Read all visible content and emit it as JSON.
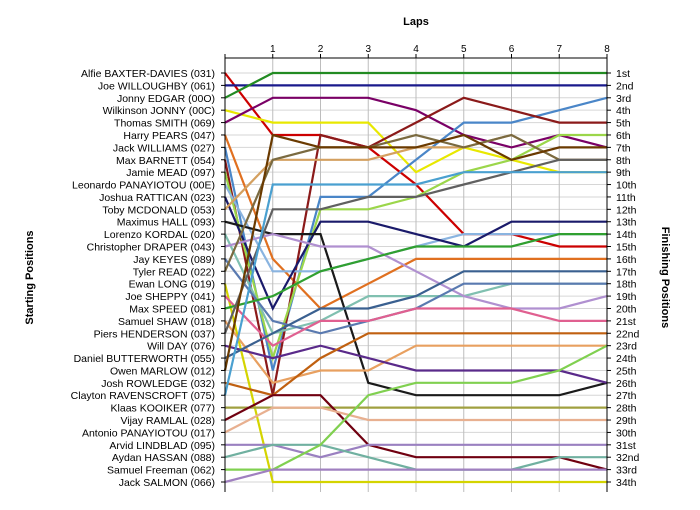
{
  "chart_data": {
    "type": "line",
    "xlabel": "Laps",
    "ylabel_left": "Starting Positions",
    "ylabel_right": "Finishing Positions",
    "x": [
      0,
      1,
      2,
      3,
      4,
      5,
      6,
      7,
      8
    ],
    "xlim": [
      0,
      8
    ],
    "ylim": [
      1,
      34
    ],
    "y_inverted": true,
    "grid": true,
    "starting_labels": [
      "Alfie BAXTER-DAVIES (031)",
      "Joe WILLOUGHBY (061)",
      "Jonny EDGAR (00O)",
      "Wilkinson JONNY (00C)",
      "Thomas SMITH (069)",
      "Harry PEARS (047)",
      "Jack WILLIAMS (027)",
      "Max BARNETT (054)",
      "Jamie MEAD (097)",
      "Leonardo PANAYIOTOU (00E)",
      "Joshua RATTICAN (023)",
      "Toby MCDONALD (053)",
      "Maximus HALL (093)",
      "Lorenzo KORDAL (020)",
      "Christopher DRAPER (043)",
      "Jay KEYES (089)",
      "Tyler READ (022)",
      "Ewan LONG (019)",
      "Joe SHEPPY (041)",
      "Max SPEED (081)",
      "Samuel SHAW (018)",
      "Piers HENDERSON (037)",
      "Will DAY (076)",
      "Daniel BUTTERWORTH (055)",
      "Owen MARLOW (012)",
      "Josh ROWLEDGE (032)",
      "Clayton RAVENSCROFT (075)",
      "Klaas KOOIKER (077)",
      "Vijay RAMLAL (028)",
      "Antonio PANAYIOTOU (017)",
      "Arvid LINDBLAD (095)",
      "Aydan HASSAN (088)",
      "Samuel Freeman (062)",
      "Jack SALMON (066)"
    ],
    "finishing_labels": [
      "1st",
      "2nd",
      "3rd",
      "4th",
      "5th",
      "6th",
      "7th",
      "8th",
      "9th",
      "10th",
      "11th",
      "12th",
      "13th",
      "14th",
      "15th",
      "16th",
      "17th",
      "18th",
      "19th",
      "20th",
      "21st",
      "22nd",
      "23rd",
      "24th",
      "25th",
      "26th",
      "27th",
      "28th",
      "29th",
      "30th",
      "31st",
      "32nd",
      "33rd",
      "34th"
    ],
    "series": [
      {
        "color": "#cc0000",
        "values": [
          1,
          6,
          6,
          7,
          10,
          14,
          14,
          15,
          15
        ]
      },
      {
        "color": "#1a1a8c",
        "values": [
          2,
          2,
          2,
          2,
          2,
          2,
          2,
          2,
          2
        ]
      },
      {
        "color": "#228b22",
        "values": [
          3,
          1,
          1,
          1,
          1,
          1,
          1,
          1,
          1
        ]
      },
      {
        "color": "#e8e800",
        "values": [
          4,
          5,
          5,
          5,
          9,
          7,
          8,
          9,
          9
        ]
      },
      {
        "color": "#7a0066",
        "values": [
          5,
          3,
          3,
          3,
          4,
          6,
          7,
          6,
          7
        ]
      },
      {
        "color": "#e07020",
        "values": [
          6,
          16,
          20,
          18,
          16,
          16,
          16,
          16,
          16
        ]
      },
      {
        "color": "#4a86c8",
        "values": [
          7,
          25,
          11,
          11,
          8,
          5,
          5,
          4,
          3
        ]
      },
      {
        "color": "#8b1a1a",
        "values": [
          8,
          27,
          6,
          7,
          5,
          3,
          4,
          5,
          5
        ]
      },
      {
        "color": "#9bd64a",
        "values": [
          9,
          24,
          12,
          12,
          11,
          9,
          8,
          6,
          6
        ]
      },
      {
        "color": "#8ab4e0",
        "values": [
          10,
          17,
          17,
          16,
          15,
          14,
          14,
          14,
          14
        ]
      },
      {
        "color": "#1a1a6a",
        "values": [
          11,
          20,
          13,
          13,
          14,
          15,
          13,
          13,
          13
        ]
      },
      {
        "color": "#d4a060",
        "values": [
          12,
          8,
          8,
          8,
          7,
          7,
          6,
          8,
          8
        ]
      },
      {
        "color": "#1a1a1a",
        "values": [
          13,
          14,
          14,
          26,
          27,
          27,
          27,
          27,
          26
        ]
      },
      {
        "color": "#80c0b0",
        "values": [
          14,
          22,
          21,
          19,
          19,
          19,
          18,
          18,
          18
        ]
      },
      {
        "color": "#b090d0",
        "values": [
          15,
          14,
          15,
          15,
          17,
          19,
          20,
          20,
          19
        ]
      },
      {
        "color": "#5a7ab0",
        "values": [
          16,
          21,
          22,
          21,
          20,
          18,
          18,
          18,
          18
        ]
      },
      {
        "color": "#7a6a40",
        "values": [
          17,
          8,
          7,
          7,
          6,
          7,
          6,
          8,
          8
        ]
      },
      {
        "color": "#d4d400",
        "values": [
          18,
          34,
          34,
          34,
          34,
          34,
          34,
          34,
          34
        ]
      },
      {
        "color": "#e06090",
        "values": [
          19,
          23,
          21,
          21,
          20,
          20,
          20,
          21,
          21
        ]
      },
      {
        "color": "#30a030",
        "values": [
          20,
          19,
          17,
          16,
          15,
          15,
          15,
          14,
          14
        ]
      },
      {
        "color": "#e8a060",
        "values": [
          21,
          26,
          25,
          25,
          23,
          23,
          23,
          23,
          23
        ]
      },
      {
        "color": "#606060",
        "values": [
          22,
          12,
          12,
          11,
          11,
          10,
          9,
          8,
          8
        ]
      },
      {
        "color": "#5a2a8a",
        "values": [
          23,
          24,
          23,
          24,
          25,
          25,
          25,
          25,
          26
        ]
      },
      {
        "color": "#3a6090",
        "values": [
          24,
          22,
          20,
          20,
          19,
          17,
          17,
          17,
          17
        ]
      },
      {
        "color": "#6a3a00",
        "values": [
          25,
          6,
          7,
          7,
          7,
          6,
          8,
          7,
          7
        ]
      },
      {
        "color": "#c06010",
        "values": [
          26,
          27,
          24,
          22,
          22,
          22,
          22,
          22,
          22
        ]
      },
      {
        "color": "#4aa0d0",
        "values": [
          27,
          10,
          10,
          10,
          10,
          9,
          9,
          9,
          9
        ]
      },
      {
        "color": "#a0a040",
        "values": [
          28,
          28,
          28,
          28,
          28,
          28,
          28,
          28,
          28
        ]
      },
      {
        "color": "#700010",
        "values": [
          29,
          27,
          27,
          31,
          32,
          32,
          32,
          32,
          33
        ]
      },
      {
        "color": "#e8b090",
        "values": [
          30,
          28,
          28,
          29,
          29,
          29,
          29,
          29,
          29
        ]
      },
      {
        "color": "#9a80c0",
        "values": [
          31,
          31,
          32,
          31,
          31,
          31,
          31,
          31,
          31
        ]
      },
      {
        "color": "#70b0a0",
        "values": [
          32,
          31,
          31,
          32,
          33,
          33,
          33,
          32,
          32
        ]
      },
      {
        "color": "#80d050",
        "values": [
          33,
          33,
          31,
          27,
          26,
          26,
          26,
          25,
          23
        ]
      },
      {
        "color": "#a080c0",
        "values": [
          34,
          33,
          33,
          33,
          33,
          33,
          33,
          33,
          33
        ]
      }
    ]
  }
}
